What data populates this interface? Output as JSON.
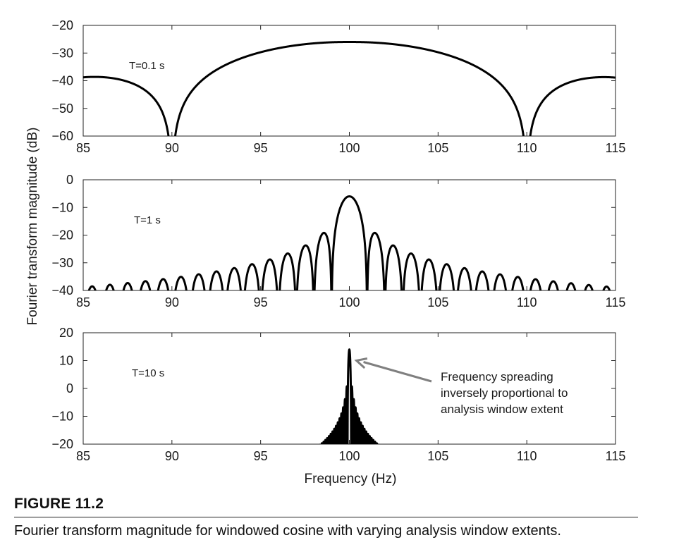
{
  "ylabel": "Fourier transform magnitude (dB)",
  "xlabel": "Frequency (Hz)",
  "caption": {
    "number": "FIGURE 11.2",
    "text": "Fourier transform magnitude for windowed cosine with varying analysis window extents."
  },
  "annotation": {
    "lines": [
      "Frequency spreading",
      "inversely proportional to",
      "analysis window extent"
    ],
    "target": {
      "x": 100.4,
      "y": 10
    },
    "arrow_color": "#808080"
  },
  "line_color": "#000000",
  "chart_data": [
    {
      "type": "line",
      "panel_label": "T=0.1 s",
      "xlim": [
        85,
        115
      ],
      "ylim": [
        -60,
        -20
      ],
      "xticks": [
        85,
        90,
        95,
        100,
        105,
        110,
        115
      ],
      "xtick_labels": [
        "85",
        "90",
        "95",
        "100",
        "105",
        "110",
        "115"
      ],
      "yticks": [
        -20,
        -30,
        -40,
        -50,
        -60
      ],
      "ytick_labels": [
        "−20",
        "−30",
        "−40",
        "−50",
        "−60"
      ],
      "grid": false,
      "series": [
        {
          "window_s": 0.1,
          "center_hz": 100,
          "peak_db": -26
        }
      ]
    },
    {
      "type": "line",
      "panel_label": "T=1 s",
      "xlim": [
        85,
        115
      ],
      "ylim": [
        -40,
        0
      ],
      "xticks": [
        85,
        90,
        95,
        100,
        105,
        110,
        115
      ],
      "xtick_labels": [
        "85",
        "90",
        "95",
        "100",
        "105",
        "110",
        "115"
      ],
      "yticks": [
        0,
        -10,
        -20,
        -30,
        -40
      ],
      "ytick_labels": [
        "0",
        "−10",
        "−20",
        "−30",
        "−40"
      ],
      "grid": false,
      "series": [
        {
          "window_s": 1,
          "center_hz": 100,
          "peak_db": -6
        }
      ]
    },
    {
      "type": "line",
      "panel_label": "T=10 s",
      "xlim": [
        85,
        115
      ],
      "ylim": [
        -20,
        20
      ],
      "xticks": [
        85,
        90,
        95,
        100,
        105,
        110,
        115
      ],
      "xtick_labels": [
        "85",
        "90",
        "95",
        "100",
        "105",
        "110",
        "115"
      ],
      "yticks": [
        20,
        10,
        0,
        -10,
        -20
      ],
      "ytick_labels": [
        "20",
        "10",
        "0",
        "−10",
        "−20"
      ],
      "grid": false,
      "series": [
        {
          "window_s": 10,
          "center_hz": 100,
          "peak_db": 14
        }
      ]
    }
  ]
}
